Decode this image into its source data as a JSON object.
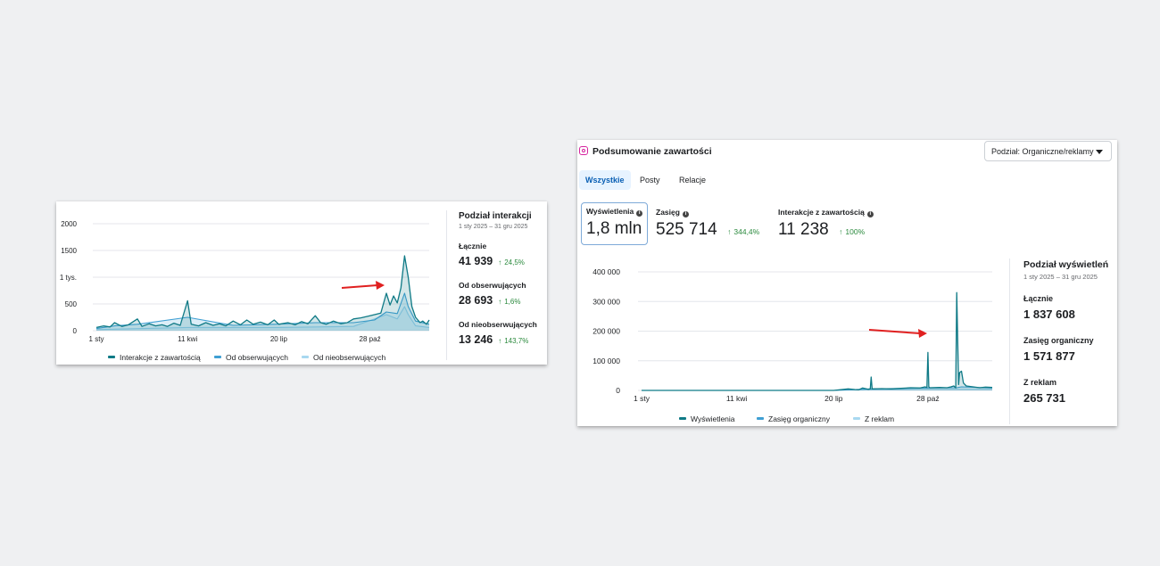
{
  "colors": {
    "series_dark": "#0f7a86",
    "series_mid": "#3f9fd3",
    "series_light": "#a8d8f0",
    "arrow": "#e02020",
    "positive": "#2b8a3e"
  },
  "card1": {
    "side": {
      "title": "Podział interakcji",
      "date_range": "1 sty 2025 – 31 gru 2025",
      "rows": [
        {
          "label": "Łącznie",
          "value": "41 939",
          "change": "24,5%"
        },
        {
          "label": "Od obserwujących",
          "value": "28 693",
          "change": "1,6%"
        },
        {
          "label": "Od nieobserwujących",
          "value": "13 246",
          "change": "143,7%"
        }
      ]
    },
    "legend": [
      {
        "label": "Interakcje z zawartością",
        "color": "#0f7a86"
      },
      {
        "label": "Od obserwujących",
        "color": "#3f9fd3"
      },
      {
        "label": "Od nieobserwujących",
        "color": "#a8d8f0"
      }
    ]
  },
  "card2": {
    "header": {
      "title": "Podsumowanie zawartości",
      "icon": "instagram-icon",
      "dropdown_label": "Podział: Organiczne/reklamy"
    },
    "tabs": [
      {
        "label": "Wszystkie",
        "active": true
      },
      {
        "label": "Posty",
        "active": false
      },
      {
        "label": "Relacje",
        "active": false
      }
    ],
    "metrics": [
      {
        "label": "Wyświetlenia",
        "value": "1,8 mln",
        "change": ""
      },
      {
        "label": "Zasięg",
        "value": "525 714",
        "change": "344,4%"
      },
      {
        "label": "Interakcje z zawartością",
        "value": "11 238",
        "change": "100%"
      }
    ],
    "side": {
      "title": "Podział wyświetleń",
      "date_range": "1 sty 2025 – 31 gru 2025",
      "rows": [
        {
          "label": "Łącznie",
          "value": "1 837 608"
        },
        {
          "label": "Zasięg organiczny",
          "value": "1 571 877"
        },
        {
          "label": "Z reklam",
          "value": "265 731"
        }
      ]
    },
    "legend": [
      {
        "label": "Wyświetlenia",
        "color": "#0f7a86"
      },
      {
        "label": "Zasięg organiczny",
        "color": "#3f9fd3"
      },
      {
        "label": "Z reklam",
        "color": "#a8d8f0"
      }
    ]
  },
  "chart_data": [
    {
      "type": "line",
      "yticks": [
        "0",
        "500",
        "1 tys.",
        "1500",
        "2000"
      ],
      "ylim": [
        0,
        2000
      ],
      "xticks": [
        "1 sty",
        "11 kwi",
        "20 lip",
        "28 paź"
      ],
      "grid": true,
      "legend_position": "bottom",
      "series": [
        {
          "name": "Interakcje z zawartością",
          "color": "#0f7a86",
          "points": [
            [
              0,
              60
            ],
            [
              8,
              90
            ],
            [
              15,
              70
            ],
            [
              20,
              150
            ],
            [
              28,
              80
            ],
            [
              35,
              110
            ],
            [
              45,
              220
            ],
            [
              50,
              80
            ],
            [
              58,
              130
            ],
            [
              65,
              90
            ],
            [
              72,
              110
            ],
            [
              78,
              80
            ],
            [
              85,
              140
            ],
            [
              92,
              100
            ],
            [
              100,
              560
            ],
            [
              104,
              120
            ],
            [
              112,
              90
            ],
            [
              120,
              150
            ],
            [
              128,
              100
            ],
            [
              135,
              130
            ],
            [
              142,
              90
            ],
            [
              150,
              180
            ],
            [
              158,
              110
            ],
            [
              165,
              200
            ],
            [
              172,
              120
            ],
            [
              180,
              160
            ],
            [
              188,
              110
            ],
            [
              195,
              200
            ],
            [
              200,
              120
            ],
            [
              210,
              150
            ],
            [
              218,
              110
            ],
            [
              225,
              170
            ],
            [
              232,
              130
            ],
            [
              240,
              280
            ],
            [
              246,
              150
            ],
            [
              252,
              120
            ],
            [
              260,
              180
            ],
            [
              268,
              130
            ],
            [
              275,
              150
            ],
            [
              282,
              220
            ],
            [
              290,
              240
            ],
            [
              298,
              270
            ],
            [
              305,
              300
            ],
            [
              312,
              330
            ],
            [
              318,
              700
            ],
            [
              322,
              480
            ],
            [
              326,
              650
            ],
            [
              330,
              520
            ],
            [
              334,
              800
            ],
            [
              338,
              1400
            ],
            [
              342,
              1000
            ],
            [
              346,
              450
            ],
            [
              350,
              250
            ],
            [
              355,
              150
            ],
            [
              358,
              180
            ],
            [
              362,
              120
            ],
            [
              365,
              200
            ]
          ]
        },
        {
          "name": "Od obserwujących",
          "color": "#3f9fd3",
          "points": [
            [
              0,
              40
            ],
            [
              20,
              90
            ],
            [
              45,
              120
            ],
            [
              100,
              250
            ],
            [
              150,
              100
            ],
            [
              195,
              120
            ],
            [
              240,
              150
            ],
            [
              282,
              150
            ],
            [
              305,
              200
            ],
            [
              318,
              350
            ],
            [
              330,
              320
            ],
            [
              338,
              700
            ],
            [
              342,
              450
            ],
            [
              350,
              180
            ],
            [
              365,
              120
            ]
          ]
        },
        {
          "name": "Od nieobserwujących",
          "color": "#a8d8f0",
          "points": [
            [
              0,
              20
            ],
            [
              100,
              60
            ],
            [
              200,
              60
            ],
            [
              282,
              80
            ],
            [
              318,
              300
            ],
            [
              330,
              220
            ],
            [
              338,
              450
            ],
            [
              342,
              300
            ],
            [
              350,
              90
            ],
            [
              365,
              60
            ]
          ]
        }
      ]
    },
    {
      "type": "line",
      "yticks": [
        "0",
        "100 000",
        "200 000",
        "300 000",
        "400 000"
      ],
      "ylim": [
        0,
        400000
      ],
      "xticks": [
        "1 sty",
        "11 kwi",
        "20 lip",
        "28 paź"
      ],
      "grid": true,
      "legend_position": "bottom",
      "series": [
        {
          "name": "Wyświetlenia",
          "color": "#0f7a86",
          "points": [
            [
              0,
              0
            ],
            [
              100,
              0
            ],
            [
              200,
              0
            ],
            [
              215,
              5000
            ],
            [
              222,
              3000
            ],
            [
              226,
              2000
            ],
            [
              230,
              8000
            ],
            [
              236,
              4000
            ],
            [
              238,
              5000
            ],
            [
              239,
              45000
            ],
            [
              240,
              5000
            ],
            [
              250,
              6000
            ],
            [
              260,
              5000
            ],
            [
              270,
              7000
            ],
            [
              280,
              9000
            ],
            [
              290,
              8000
            ],
            [
              295,
              12000
            ],
            [
              297,
              10000
            ],
            [
              298,
              128000
            ],
            [
              299,
              12000
            ],
            [
              300,
              9000
            ],
            [
              310,
              10000
            ],
            [
              318,
              9000
            ],
            [
              322,
              12000
            ],
            [
              325,
              15000
            ],
            [
              327,
              8000
            ],
            [
              328,
              330000
            ],
            [
              330,
              20000
            ],
            [
              331,
              60000
            ],
            [
              333,
              65000
            ],
            [
              335,
              25000
            ],
            [
              338,
              15000
            ],
            [
              345,
              12000
            ],
            [
              352,
              9000
            ],
            [
              358,
              11000
            ],
            [
              365,
              10000
            ]
          ]
        },
        {
          "name": "Zasięg organiczny",
          "color": "#3f9fd3",
          "points": [
            [
              0,
              0
            ],
            [
              200,
              0
            ],
            [
              239,
              5000
            ],
            [
              298,
              8000
            ],
            [
              328,
              9000
            ],
            [
              333,
              12000
            ],
            [
              365,
              8000
            ]
          ]
        },
        {
          "name": "Z reklam",
          "color": "#a8d8f0",
          "points": [
            [
              0,
              0
            ],
            [
              200,
              0
            ],
            [
              239,
              2000
            ],
            [
              298,
              3000
            ],
            [
              328,
              3000
            ],
            [
              365,
              3000
            ]
          ]
        }
      ]
    }
  ]
}
